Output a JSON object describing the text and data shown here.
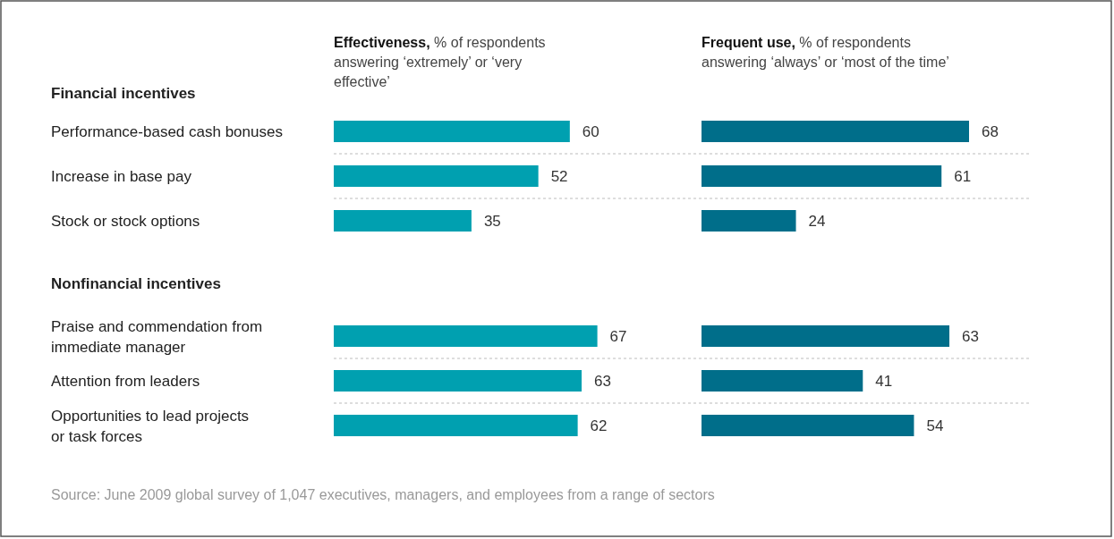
{
  "chart_data": [
    {
      "type": "bar",
      "orientation": "horizontal",
      "title": "Effectiveness,",
      "subtitle": "% of respondents answering ‘extremely’ or ‘very effective’",
      "categories": [
        "Financial incentives",
        "Performance-based cash bonuses",
        "Increase in base pay",
        "Stock or stock options",
        "Nonfinancial incentives",
        "Praise and commendation from immediate manager",
        "Attention from leaders",
        "Opportunities to lead projects or task forces"
      ],
      "values": [
        null,
        60,
        52,
        35,
        null,
        67,
        63,
        62
      ],
      "color": "#00a0b0",
      "data_labels": true,
      "annotations": [
        "Source: June 2009 global survey of 1,047 executives, managers, and employees from a range of sectors"
      ]
    },
    {
      "type": "bar",
      "orientation": "horizontal",
      "title": "Frequent use,",
      "subtitle": "% of respondents answering ‘always’ or ‘most of the time’",
      "values": [
        null,
        68,
        61,
        24,
        null,
        63,
        41,
        54
      ],
      "color": "#006e8a",
      "data_labels": true
    }
  ]
}
